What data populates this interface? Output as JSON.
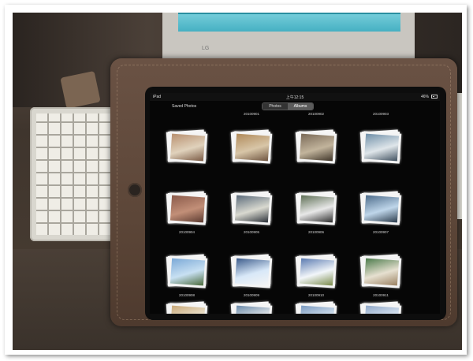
{
  "status_bar": {
    "device": "iPad",
    "time": "上午12:15",
    "battery": "46%"
  },
  "nav": {
    "saved_photos": "Saved Photos",
    "tabs": [
      {
        "label": "Photos",
        "selected": false
      },
      {
        "label": "Albums",
        "selected": true
      }
    ]
  },
  "albums": [
    {
      "label": "20100901",
      "label_position": "above",
      "thumb_colors": [
        "#b08a5a",
        "#d8c6a8",
        "#6e5440"
      ]
    },
    {
      "label": "20100902",
      "label_position": "above",
      "thumb_colors": [
        "#7a6a58",
        "#c2b49c",
        "#3e3428"
      ]
    },
    {
      "label": "20100903",
      "label_position": "above",
      "thumb_colors": [
        "#6f8fa8",
        "#dfe6ea",
        "#3f4f5e"
      ]
    },
    {
      "label": "20100904",
      "label_position": "below",
      "thumb_colors": [
        "#8a5a4a",
        "#c28f78",
        "#5a3a30"
      ]
    },
    {
      "label": "20100905",
      "label_position": "below",
      "thumb_colors": [
        "#5a6a7a",
        "#d9d9d0",
        "#2a3038"
      ]
    },
    {
      "label": "20100906",
      "label_position": "below",
      "thumb_colors": [
        "#5e6f55",
        "#e8e8e8",
        "#2c2c2c"
      ]
    },
    {
      "label": "20100907",
      "label_position": "below",
      "thumb_colors": [
        "#4c6b8a",
        "#bfd6ea",
        "#2a3a4a"
      ]
    },
    {
      "label": "20100908",
      "label_position": "below",
      "thumb_colors": [
        "#7aa8d6",
        "#c8e0f2",
        "#4a6a3a"
      ]
    },
    {
      "label": "20100909",
      "label_position": "below",
      "thumb_colors": [
        "#3a5a8a",
        "#d8e8f8",
        "#f4f4f4"
      ]
    },
    {
      "label": "20100910",
      "label_position": "below",
      "thumb_colors": [
        "#5a7ab0",
        "#f2f6fa",
        "#7a8a4a"
      ]
    },
    {
      "label": "20100911",
      "label_position": "below",
      "thumb_colors": [
        "#4a7a4a",
        "#e6e0d0",
        "#9a8060"
      ]
    },
    {
      "label": "",
      "label_position": "none",
      "thumb_colors": [
        "#c8a878",
        "#f0ead8",
        "#5a6a3a"
      ]
    },
    {
      "label": "",
      "label_position": "none",
      "thumb_colors": [
        "#6a8aaa",
        "#f0f0f0",
        "#4a5a6a"
      ]
    },
    {
      "label": "",
      "label_position": "none",
      "thumb_colors": [
        "#7a9ac0",
        "#dce8f2",
        "#3a3a3a"
      ]
    },
    {
      "label": "",
      "label_position": "none",
      "thumb_colors": [
        "#90a8c8",
        "#e2ecf6",
        "#505a60"
      ]
    }
  ],
  "monitor": {
    "brand": "LG"
  },
  "colors": {
    "case_leather": "#5c4638",
    "screen_bg": "#060606",
    "frame_border": "#ffffff"
  }
}
